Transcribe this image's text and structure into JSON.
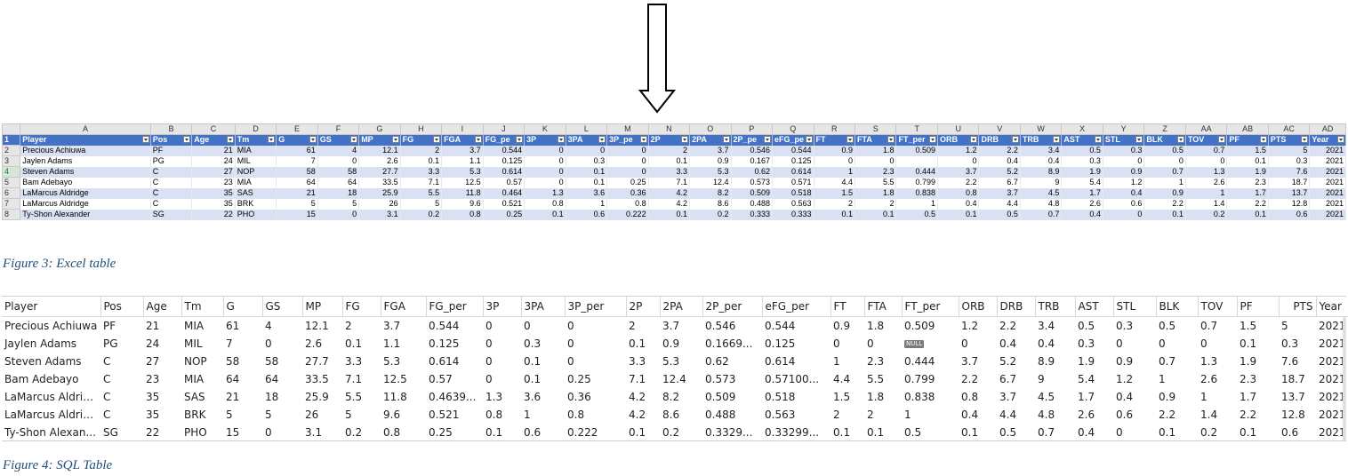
{
  "excel": {
    "col_letters": [
      "A",
      "B",
      "C",
      "D",
      "E",
      "F",
      "G",
      "H",
      "I",
      "J",
      "K",
      "L",
      "M",
      "N",
      "O",
      "P",
      "Q",
      "R",
      "S",
      "T",
      "U",
      "V",
      "W",
      "X",
      "Y",
      "Z",
      "AA",
      "AB",
      "AC",
      "AD"
    ],
    "row_numbers": [
      "1",
      "2",
      "3",
      "4",
      "5",
      "6",
      "7",
      "8"
    ],
    "headers": [
      "Player",
      "Pos",
      "Age",
      "Tm",
      "G",
      "GS",
      "MP",
      "FG",
      "FGA",
      "FG_pe",
      "3P",
      "3PA",
      "3P_pe",
      "2P",
      "2PA",
      "2P_pe",
      "eFG_pe",
      "FT",
      "FTA",
      "FT_per",
      "ORB",
      "DRB",
      "TRB",
      "AST",
      "STL",
      "BLK",
      "TOV",
      "PF",
      "PTS",
      "Year"
    ],
    "rows": [
      [
        "Precious Achiuwa",
        "PF",
        "21",
        "MIA",
        "61",
        "4",
        "12.1",
        "2",
        "3.7",
        "0.544",
        "0",
        "0",
        "0",
        "2",
        "3.7",
        "0.546",
        "0.544",
        "0.9",
        "1.8",
        "0.509",
        "1.2",
        "2.2",
        "3.4",
        "0.5",
        "0.3",
        "0.5",
        "0.7",
        "1.5",
        "5",
        "2021"
      ],
      [
        "Jaylen Adams",
        "PG",
        "24",
        "MIL",
        "7",
        "0",
        "2.6",
        "0.1",
        "1.1",
        "0.125",
        "0",
        "0.3",
        "0",
        "0.1",
        "0.9",
        "0.167",
        "0.125",
        "0",
        "0",
        "",
        "0",
        "0.4",
        "0.4",
        "0.3",
        "0",
        "0",
        "0",
        "0.1",
        "0.3",
        "2021"
      ],
      [
        "Steven Adams",
        "C",
        "27",
        "NOP",
        "58",
        "58",
        "27.7",
        "3.3",
        "5.3",
        "0.614",
        "0",
        "0.1",
        "0",
        "3.3",
        "5.3",
        "0.62",
        "0.614",
        "1",
        "2.3",
        "0.444",
        "3.7",
        "5.2",
        "8.9",
        "1.9",
        "0.9",
        "0.7",
        "1.3",
        "1.9",
        "7.6",
        "2021"
      ],
      [
        "Bam Adebayo",
        "C",
        "23",
        "MIA",
        "64",
        "64",
        "33.5",
        "7.1",
        "12.5",
        "0.57",
        "0",
        "0.1",
        "0.25",
        "7.1",
        "12.4",
        "0.573",
        "0.571",
        "4.4",
        "5.5",
        "0.799",
        "2.2",
        "6.7",
        "9",
        "5.4",
        "1.2",
        "1",
        "2.6",
        "2.3",
        "18.7",
        "2021"
      ],
      [
        "LaMarcus Aldridge",
        "C",
        "35",
        "SAS",
        "21",
        "18",
        "25.9",
        "5.5",
        "11.8",
        "0.464",
        "1.3",
        "3.6",
        "0.36",
        "4.2",
        "8.2",
        "0.509",
        "0.518",
        "1.5",
        "1.8",
        "0.838",
        "0.8",
        "3.7",
        "4.5",
        "1.7",
        "0.4",
        "0.9",
        "1",
        "1.7",
        "13.7",
        "2021"
      ],
      [
        "LaMarcus Aldridge",
        "C",
        "35",
        "BRK",
        "5",
        "5",
        "26",
        "5",
        "9.6",
        "0.521",
        "0.8",
        "1",
        "0.8",
        "4.2",
        "8.6",
        "0.488",
        "0.563",
        "2",
        "2",
        "1",
        "0.4",
        "4.4",
        "4.8",
        "2.6",
        "0.6",
        "2.2",
        "1.4",
        "2.2",
        "12.8",
        "2021"
      ],
      [
        "Ty-Shon Alexander",
        "SG",
        "22",
        "PHO",
        "15",
        "0",
        "3.1",
        "0.2",
        "0.8",
        "0.25",
        "0.1",
        "0.6",
        "0.222",
        "0.1",
        "0.2",
        "0.333",
        "0.333",
        "0.1",
        "0.1",
        "0.5",
        "0.1",
        "0.5",
        "0.7",
        "0.4",
        "0",
        "0.1",
        "0.2",
        "0.1",
        "0.6",
        "2021"
      ]
    ]
  },
  "captions": {
    "excel": "Figure 3: Excel table",
    "sql": "Figure 4: SQL Table"
  },
  "sql": {
    "headers": [
      "Player",
      "Pos",
      "Age",
      "Tm",
      "G",
      "GS",
      "MP",
      "FG",
      "FGA",
      "FG_per",
      "3P",
      "3PA",
      "3P_per",
      "2P",
      "2PA",
      "2P_per",
      "eFG_per",
      "FT",
      "FTA",
      "FT_per",
      "ORB",
      "DRB",
      "TRB",
      "AST",
      "STL",
      "BLK",
      "TOV",
      "PF",
      "PTS",
      "Year"
    ],
    "null_label": "NULL",
    "rows": [
      [
        "Precious Achiuwa",
        "PF",
        "21",
        "MIA",
        "61",
        "4",
        "12.1",
        "2",
        "3.7",
        "0.544",
        "0",
        "0",
        "0",
        "2",
        "3.7",
        "0.546",
        "0.544",
        "0.9",
        "1.8",
        "0.509",
        "1.2",
        "2.2",
        "3.4",
        "0.5",
        "0.3",
        "0.5",
        "0.7",
        "1.5",
        "5",
        "2021"
      ],
      [
        "Jaylen Adams",
        "PG",
        "24",
        "MIL",
        "7",
        "0",
        "2.6",
        "0.1",
        "1.1",
        "0.125",
        "0",
        "0.3",
        "0",
        "0.1",
        "0.9",
        "0.1669...",
        "0.125",
        "0",
        "0",
        null,
        "0",
        "0.4",
        "0.4",
        "0.3",
        "0",
        "0",
        "0",
        "0.1",
        "0.3",
        "2021"
      ],
      [
        "Steven Adams",
        "C",
        "27",
        "NOP",
        "58",
        "58",
        "27.7",
        "3.3",
        "5.3",
        "0.614",
        "0",
        "0.1",
        "0",
        "3.3",
        "5.3",
        "0.62",
        "0.614",
        "1",
        "2.3",
        "0.444",
        "3.7",
        "5.2",
        "8.9",
        "1.9",
        "0.9",
        "0.7",
        "1.3",
        "1.9",
        "7.6",
        "2021"
      ],
      [
        "Bam Adebayo",
        "C",
        "23",
        "MIA",
        "64",
        "64",
        "33.5",
        "7.1",
        "12.5",
        "0.57",
        "0",
        "0.1",
        "0.25",
        "7.1",
        "12.4",
        "0.573",
        "0.57100...",
        "4.4",
        "5.5",
        "0.799",
        "2.2",
        "6.7",
        "9",
        "5.4",
        "1.2",
        "1",
        "2.6",
        "2.3",
        "18.7",
        "2021"
      ],
      [
        "LaMarcus Aldridge",
        "C",
        "35",
        "SAS",
        "21",
        "18",
        "25.9",
        "5.5",
        "11.8",
        "0.4639...",
        "1.3",
        "3.6",
        "0.36",
        "4.2",
        "8.2",
        "0.509",
        "0.518",
        "1.5",
        "1.8",
        "0.838",
        "0.8",
        "3.7",
        "4.5",
        "1.7",
        "0.4",
        "0.9",
        "1",
        "1.7",
        "13.7",
        "2021"
      ],
      [
        "LaMarcus Aldridge",
        "C",
        "35",
        "BRK",
        "5",
        "5",
        "26",
        "5",
        "9.6",
        "0.521",
        "0.8",
        "1",
        "0.8",
        "4.2",
        "8.6",
        "0.488",
        "0.563",
        "2",
        "2",
        "1",
        "0.4",
        "4.4",
        "4.8",
        "2.6",
        "0.6",
        "2.2",
        "1.4",
        "2.2",
        "12.8",
        "2021"
      ],
      [
        "Ty-Shon Alexan...",
        "SG",
        "22",
        "PHO",
        "15",
        "0",
        "3.1",
        "0.2",
        "0.8",
        "0.25",
        "0.1",
        "0.6",
        "0.222",
        "0.1",
        "0.2",
        "0.3329...",
        "0.33299...",
        "0.1",
        "0.1",
        "0.5",
        "0.1",
        "0.5",
        "0.7",
        "0.4",
        "0",
        "0.1",
        "0.2",
        "0.1",
        "0.6",
        "2021"
      ]
    ]
  }
}
